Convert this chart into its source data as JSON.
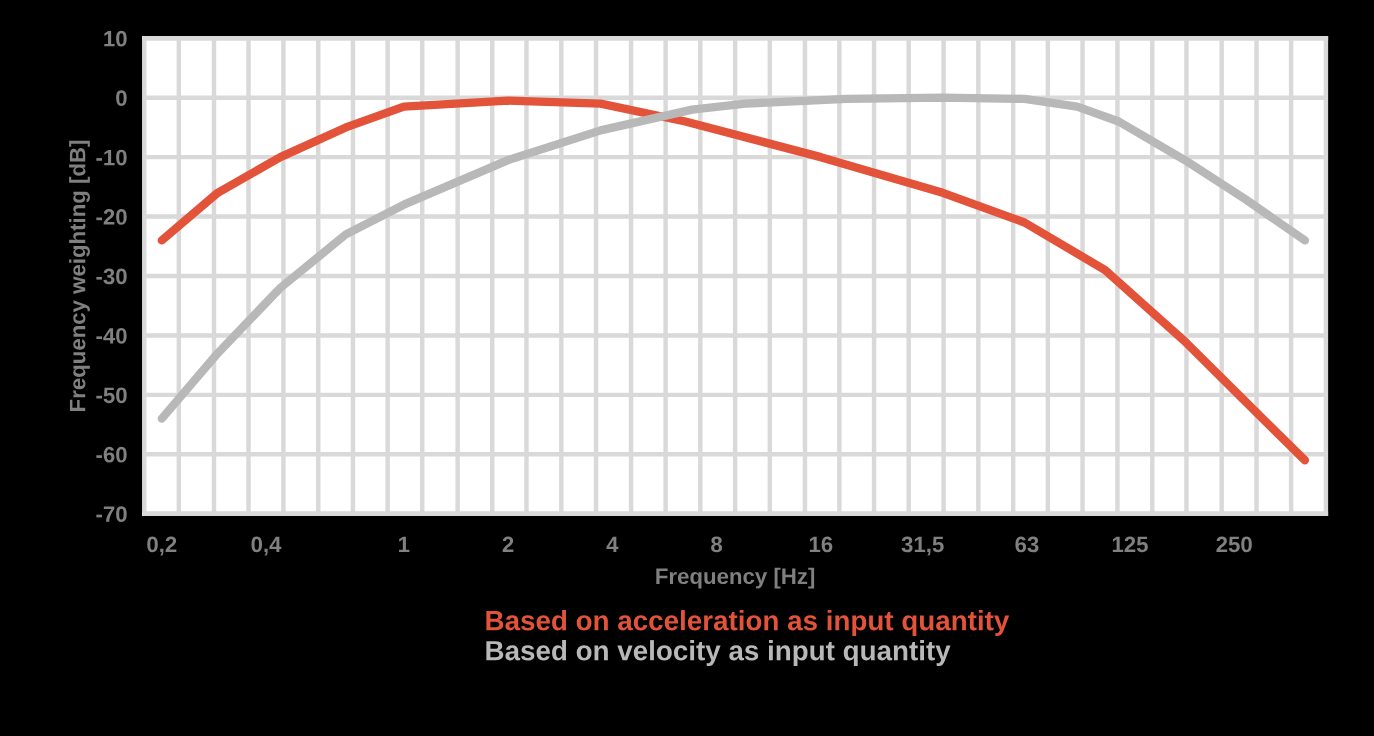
{
  "chart_data": {
    "type": "line",
    "xlabel": "Frequency [Hz]",
    "ylabel": "Frequency weighting [dB]",
    "log": "x",
    "xlim": [
      0.178,
      460
    ],
    "ylim": [
      -70,
      10
    ],
    "yticks": [
      -70,
      -60,
      -50,
      -40,
      -30,
      -20,
      -10,
      0,
      10
    ],
    "xticks": [
      {
        "value": 0.2,
        "label": "0,2"
      },
      {
        "value": 0.4,
        "label": "0,4"
      },
      1,
      2,
      4,
      8,
      16,
      {
        "value": 31.5,
        "label": "31,5"
      },
      63,
      125,
      250,
      {
        "value": 0.224,
        "label": null
      },
      {
        "value": 0.283,
        "label": null
      },
      {
        "value": 0.356,
        "label": null
      },
      {
        "value": 0.449,
        "label": null
      },
      {
        "value": 0.566,
        "label": null
      },
      {
        "value": 0.713,
        "label": null
      },
      {
        "value": 0.898,
        "label": null
      },
      {
        "value": 1.13,
        "label": null
      },
      {
        "value": 1.43,
        "label": null
      },
      {
        "value": 1.8,
        "label": null
      },
      {
        "value": 2.26,
        "label": null
      },
      {
        "value": 2.85,
        "label": null
      },
      {
        "value": 3.59,
        "label": null
      },
      {
        "value": 4.53,
        "label": null
      },
      {
        "value": 5.7,
        "label": null
      },
      {
        "value": 7.18,
        "label": null
      },
      {
        "value": 9.05,
        "label": null
      },
      {
        "value": 11.4,
        "label": null
      },
      {
        "value": 14.4,
        "label": null
      },
      {
        "value": 18.1,
        "label": null
      },
      {
        "value": 22.8,
        "label": null
      },
      {
        "value": 28.7,
        "label": null
      },
      {
        "value": 36.2,
        "label": null
      },
      {
        "value": 45.6,
        "label": null
      },
      {
        "value": 57.5,
        "label": null
      },
      {
        "value": 72.4,
        "label": null
      },
      {
        "value": 91.2,
        "label": null
      },
      {
        "value": 115,
        "label": null
      },
      {
        "value": 145,
        "label": null
      },
      {
        "value": 182,
        "label": null
      },
      {
        "value": 230,
        "label": null
      },
      {
        "value": 290,
        "label": null
      },
      {
        "value": 365,
        "label": null
      }
    ],
    "grid": true,
    "legend": "bottom",
    "marker": "none",
    "line_style": "solid",
    "series": [
      {
        "name": "Based on acceleration as input quantity",
        "color": "#e2533a",
        "x": [
          0.2,
          0.29,
          0.44,
          0.68,
          1.0,
          2.0,
          3.7,
          6.5,
          16,
          36,
          62,
          106,
          180,
          268,
          400
        ],
        "values": [
          -24,
          -16,
          -10,
          -5,
          -1.5,
          -0.5,
          -1,
          -4,
          -10,
          -16,
          -21,
          -29,
          -41,
          -51,
          -61
        ]
      },
      {
        "name": "Based on velocity as input quantity",
        "color": "#b8b8b8",
        "x": [
          0.2,
          0.29,
          0.44,
          0.68,
          1.0,
          2.0,
          3.7,
          6.8,
          9.7,
          19,
          36,
          62,
          88,
          116,
          180,
          268,
          400
        ],
        "values": [
          -54,
          -43,
          -32,
          -23,
          -18,
          -10.5,
          -5.5,
          -2,
          -1,
          -0.2,
          0,
          -0.2,
          -1.5,
          -4,
          -10.5,
          -17,
          -24
        ]
      }
    ]
  }
}
